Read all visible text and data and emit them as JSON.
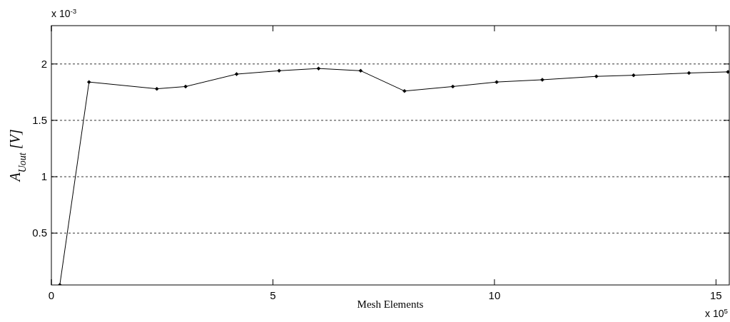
{
  "chart_data": {
    "type": "line",
    "xlabel": "Mesh Elements",
    "ylabel": "A$_{Uout}$ [V]",
    "x": [
      0.19,
      0.85,
      2.38,
      3.03,
      4.18,
      5.14,
      6.03,
      6.98,
      7.97,
      9.06,
      10.05,
      11.08,
      12.3,
      13.14,
      14.39,
      15.27
    ],
    "series": [
      {
        "color": "#000000",
        "values": [
          0.04,
          1.84,
          1.78,
          1.8,
          1.91,
          1.94,
          1.96,
          1.94,
          1.76,
          1.8,
          1.84,
          1.86,
          1.89,
          1.9,
          1.92,
          1.93
        ]
      }
    ],
    "xlim": [
      0,
      15.3
    ],
    "xticks": [
      0,
      5,
      10,
      15
    ],
    "ylim": [
      0.04,
      2.34
    ],
    "yticks": [
      0.5,
      1,
      1.5,
      2
    ],
    "grid": "y",
    "marker": "diamond",
    "line_style": "solid",
    "annotations": [
      "x 10$^{-3}$",
      "x 10$^{5}$"
    ]
  }
}
